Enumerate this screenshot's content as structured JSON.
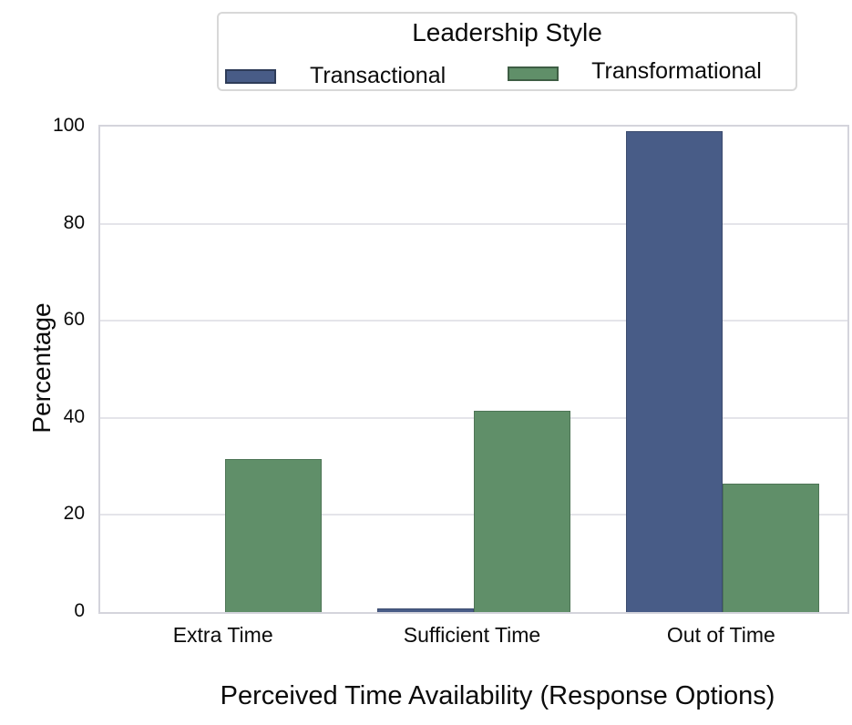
{
  "chart_data": {
    "type": "bar",
    "title": "",
    "categories": [
      "Extra Time",
      "Sufficient Time",
      "Out of Time"
    ],
    "series": [
      {
        "name": "Transactional",
        "color": "#485C87",
        "values": [
          0,
          0.8,
          99
        ]
      },
      {
        "name": "Transformational",
        "color": "#608F69",
        "values": [
          31.5,
          41.5,
          26.5
        ]
      }
    ],
    "xlabel": "Perceived Time Availability (Response Options)",
    "ylabel": "Percentage",
    "ylim": [
      0,
      100
    ],
    "yticks": [
      0,
      20,
      40,
      60,
      80,
      100
    ],
    "grid": "horizontal",
    "legend_position": "top-center"
  },
  "legend": {
    "title": "Leadership Style",
    "items": [
      {
        "label": "Transactional",
        "color": "#485C87"
      },
      {
        "label": "Transformational",
        "color": "#608F69"
      }
    ]
  },
  "colors": {
    "accent_blue": "#485C87",
    "accent_green": "#608F69",
    "gridline": "#e4e4ea",
    "spine": "#d4d4dc",
    "text": "#0b0b0b",
    "background": "#ffffff",
    "legend_border": "#d8d8d8"
  }
}
